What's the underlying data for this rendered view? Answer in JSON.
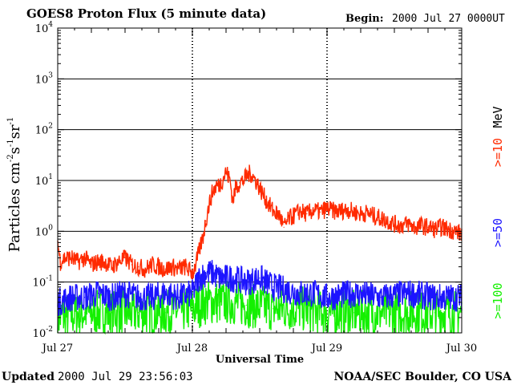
{
  "chart_data": {
    "type": "line",
    "title": "GOES8 Proton Flux (5 minute data)",
    "begin_label": "Begin:",
    "begin_value": "2000 Jul 27 0000UT",
    "xlabel": "Universal Time",
    "ylabel_main": "Particles cm",
    "ylabel_sup1": "-2",
    "ylabel_s": "s",
    "ylabel_sup2": "-1",
    "ylabel_sr": "sr",
    "ylabel_sup3": "-1",
    "y_scale": "log",
    "ylim": [
      0.01,
      10000
    ],
    "xlim_days": [
      0,
      3
    ],
    "y_ticks": [
      {
        "base": "10",
        "exp": "-2",
        "value": 0.01
      },
      {
        "base": "10",
        "exp": "-1",
        "value": 0.1
      },
      {
        "base": "10",
        "exp": "0",
        "value": 1
      },
      {
        "base": "10",
        "exp": "1",
        "value": 10
      },
      {
        "base": "10",
        "exp": "2",
        "value": 100
      },
      {
        "base": "10",
        "exp": "3",
        "value": 1000
      },
      {
        "base": "10",
        "exp": "4",
        "value": 10000
      }
    ],
    "x_ticks": [
      {
        "label": "Jul 27",
        "day": 0
      },
      {
        "label": "Jul 28",
        "day": 1
      },
      {
        "label": "Jul 29",
        "day": 2
      },
      {
        "label": "Jul 30",
        "day": 3
      }
    ],
    "series": [
      {
        "name": ">=10",
        "legend": ">=10",
        "units": "MeV",
        "color": "#ff2a00",
        "points": [
          [
            0.0,
            0.6
          ],
          [
            0.02,
            0.25
          ],
          [
            0.05,
            0.3
          ],
          [
            0.1,
            0.3
          ],
          [
            0.15,
            0.25
          ],
          [
            0.2,
            0.3
          ],
          [
            0.25,
            0.22
          ],
          [
            0.3,
            0.25
          ],
          [
            0.35,
            0.25
          ],
          [
            0.4,
            0.2
          ],
          [
            0.45,
            0.25
          ],
          [
            0.5,
            0.3
          ],
          [
            0.55,
            0.22
          ],
          [
            0.6,
            0.2
          ],
          [
            0.65,
            0.18
          ],
          [
            0.7,
            0.22
          ],
          [
            0.75,
            0.2
          ],
          [
            0.8,
            0.18
          ],
          [
            0.85,
            0.2
          ],
          [
            0.9,
            0.18
          ],
          [
            0.95,
            0.2
          ],
          [
            1.0,
            0.15
          ],
          [
            1.02,
            0.2
          ],
          [
            1.05,
            0.4
          ],
          [
            1.08,
            0.8
          ],
          [
            1.1,
            1.6
          ],
          [
            1.12,
            3.0
          ],
          [
            1.15,
            6.0
          ],
          [
            1.18,
            8.0
          ],
          [
            1.2,
            8.0
          ],
          [
            1.22,
            10.0
          ],
          [
            1.25,
            15.0
          ],
          [
            1.28,
            10.0
          ],
          [
            1.3,
            4.0
          ],
          [
            1.32,
            7.0
          ],
          [
            1.35,
            9.0
          ],
          [
            1.38,
            10.0
          ],
          [
            1.4,
            12.0
          ],
          [
            1.43,
            14.0
          ],
          [
            1.45,
            12.0
          ],
          [
            1.48,
            9.0
          ],
          [
            1.5,
            7.0
          ],
          [
            1.55,
            4.0
          ],
          [
            1.6,
            2.5
          ],
          [
            1.65,
            2.0
          ],
          [
            1.68,
            1.2
          ],
          [
            1.72,
            1.8
          ],
          [
            1.75,
            2.0
          ],
          [
            1.8,
            2.5
          ],
          [
            1.85,
            2.2
          ],
          [
            1.9,
            2.6
          ],
          [
            1.95,
            2.4
          ],
          [
            2.0,
            2.8
          ],
          [
            2.05,
            2.5
          ],
          [
            2.1,
            2.5
          ],
          [
            2.15,
            2.7
          ],
          [
            2.2,
            2.4
          ],
          [
            2.25,
            2.2
          ],
          [
            2.3,
            2.3
          ],
          [
            2.35,
            2.0
          ],
          [
            2.4,
            1.8
          ],
          [
            2.45,
            1.6
          ],
          [
            2.5,
            1.4
          ],
          [
            2.55,
            1.3
          ],
          [
            2.6,
            1.4
          ],
          [
            2.65,
            1.2
          ],
          [
            2.7,
            1.3
          ],
          [
            2.75,
            1.2
          ],
          [
            2.8,
            1.1
          ],
          [
            2.85,
            1.2
          ],
          [
            2.9,
            1.1
          ],
          [
            2.95,
            1.0
          ],
          [
            3.0,
            0.9
          ]
        ]
      },
      {
        "name": ">=50",
        "legend": ">=50",
        "color": "#1c14ff",
        "points": [
          [
            0.0,
            0.04
          ],
          [
            0.1,
            0.05
          ],
          [
            0.2,
            0.05
          ],
          [
            0.3,
            0.06
          ],
          [
            0.4,
            0.05
          ],
          [
            0.5,
            0.06
          ],
          [
            0.6,
            0.05
          ],
          [
            0.7,
            0.05
          ],
          [
            0.8,
            0.06
          ],
          [
            0.9,
            0.05
          ],
          [
            1.0,
            0.06
          ],
          [
            1.05,
            0.12
          ],
          [
            1.1,
            0.15
          ],
          [
            1.15,
            0.15
          ],
          [
            1.2,
            0.12
          ],
          [
            1.3,
            0.12
          ],
          [
            1.4,
            0.1
          ],
          [
            1.5,
            0.12
          ],
          [
            1.6,
            0.08
          ],
          [
            1.7,
            0.07
          ],
          [
            1.8,
            0.06
          ],
          [
            1.9,
            0.06
          ],
          [
            2.0,
            0.05
          ],
          [
            2.2,
            0.06
          ],
          [
            2.4,
            0.05
          ],
          [
            2.6,
            0.06
          ],
          [
            2.8,
            0.05
          ],
          [
            3.0,
            0.05
          ]
        ]
      },
      {
        "name": ">=100",
        "legend": ">=100",
        "color": "#14f000",
        "points": [
          [
            0.0,
            0.02
          ],
          [
            0.2,
            0.025
          ],
          [
            0.4,
            0.025
          ],
          [
            0.6,
            0.025
          ],
          [
            0.8,
            0.025
          ],
          [
            1.0,
            0.03
          ],
          [
            1.1,
            0.04
          ],
          [
            1.2,
            0.04
          ],
          [
            1.3,
            0.04
          ],
          [
            1.4,
            0.035
          ],
          [
            1.6,
            0.03
          ],
          [
            1.8,
            0.03
          ],
          [
            2.0,
            0.025
          ],
          [
            2.2,
            0.025
          ],
          [
            2.4,
            0.025
          ],
          [
            2.6,
            0.025
          ],
          [
            2.8,
            0.025
          ],
          [
            3.0,
            0.025
          ]
        ]
      }
    ]
  },
  "footer": {
    "updated_label": "Updated",
    "updated_value": "2000 Jul 29 23:56:03",
    "credit": "NOAA/SEC Boulder, CO USA"
  }
}
